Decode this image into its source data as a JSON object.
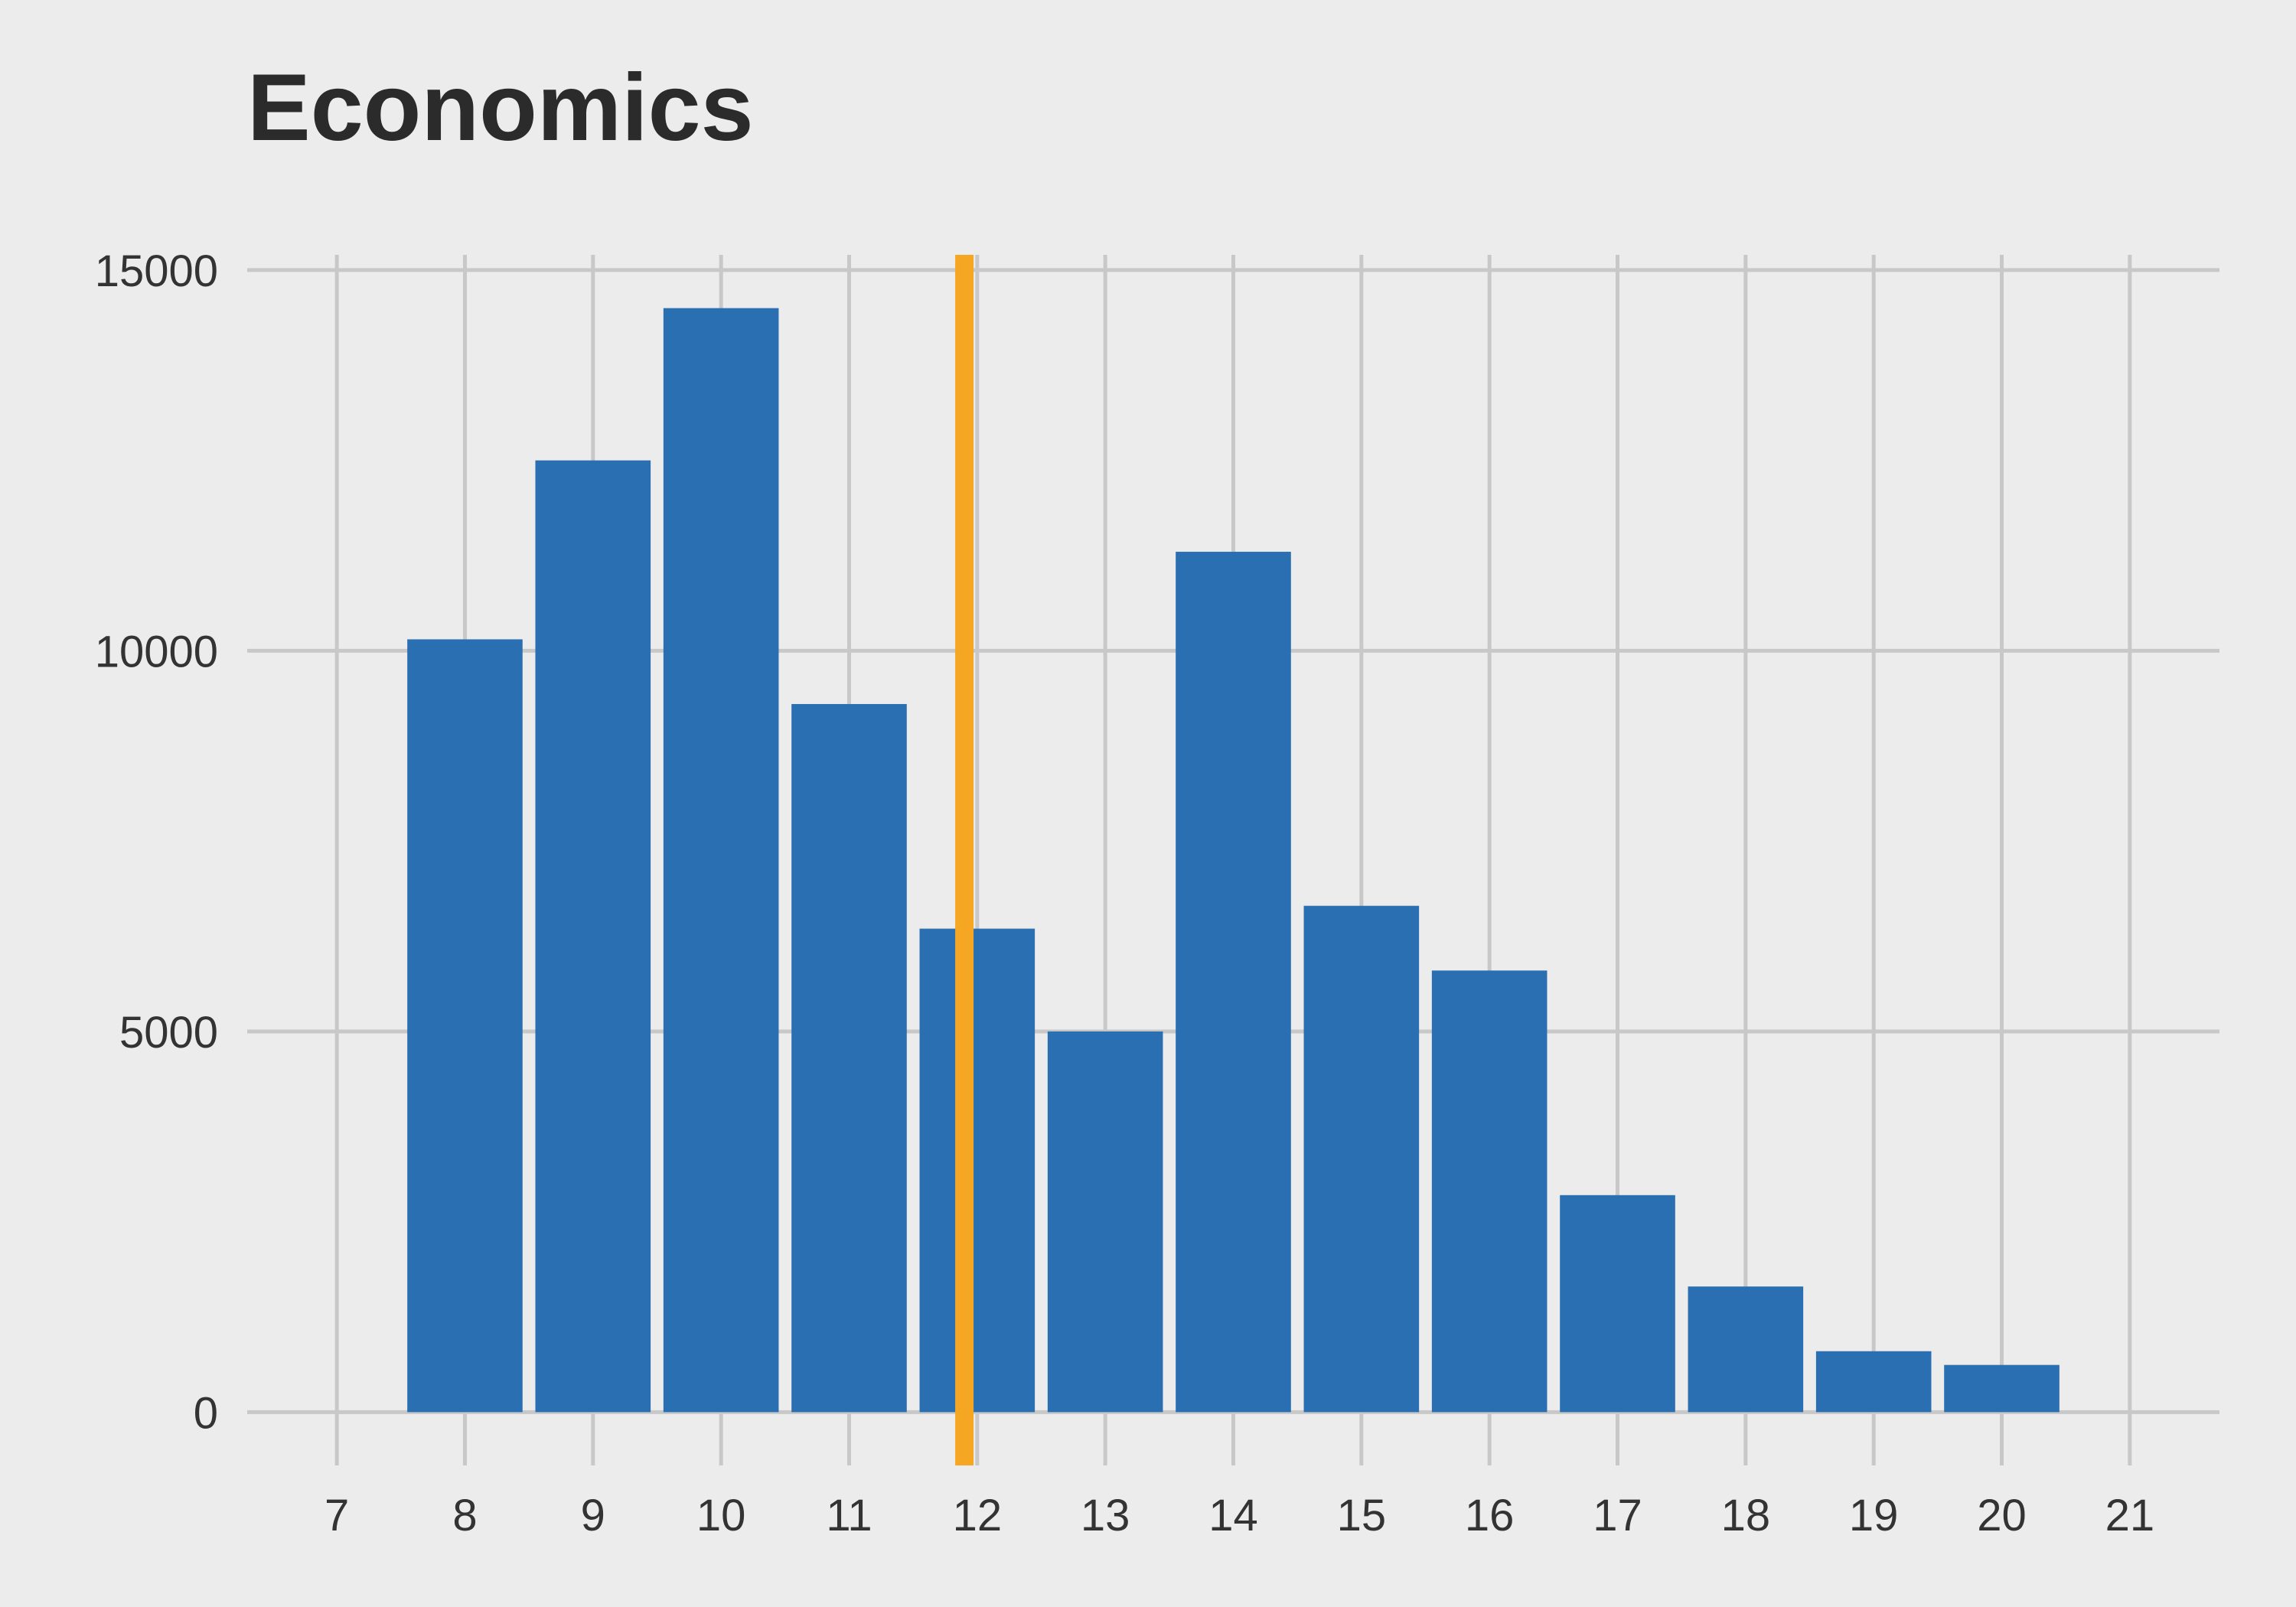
{
  "chart_data": {
    "type": "bar",
    "title": "Economics",
    "xlabel": "",
    "ylabel": "",
    "x": [
      8,
      9,
      10,
      11,
      12,
      13,
      14,
      15,
      16,
      17,
      18,
      19,
      20
    ],
    "values": [
      10150,
      12500,
      14500,
      9300,
      6350,
      5000,
      11300,
      6650,
      5800,
      2850,
      1650,
      800,
      620
    ],
    "x_ticks": [
      7,
      8,
      9,
      10,
      11,
      12,
      13,
      14,
      15,
      16,
      17,
      18,
      19,
      20,
      21
    ],
    "y_ticks": [
      0,
      5000,
      10000,
      15000
    ],
    "xlim": [
      6.3,
      21.7
    ],
    "ylim": [
      -700,
      15200
    ],
    "grid": true,
    "reference_line": {
      "x": 11.9,
      "color": "#f5a623"
    },
    "bar_color": "#2a6fb1",
    "grid_color": "#c8c8c8",
    "background_color": "#ececec"
  }
}
